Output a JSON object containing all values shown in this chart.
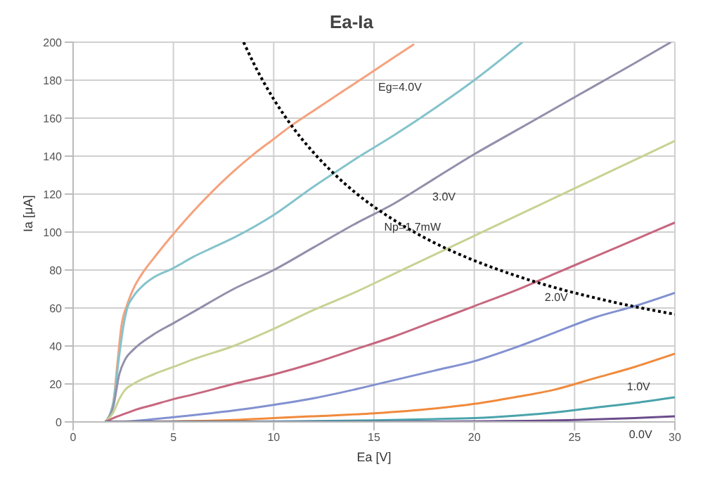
{
  "chart_data": {
    "type": "line",
    "title": "Ea-Ia",
    "xlabel": "Ea [V]",
    "ylabel": "Ia [μA]",
    "xlim": [
      0,
      30
    ],
    "xticks": [
      0,
      5,
      10,
      15,
      20,
      25,
      30
    ],
    "ylim": [
      0,
      200
    ],
    "yticks": [
      0,
      20,
      40,
      60,
      80,
      100,
      120,
      140,
      160,
      180,
      200
    ],
    "grid": true,
    "marker": "none",
    "annotations": [
      {
        "text": "Eg=4.0V",
        "x": 15,
        "y": 185
      },
      {
        "text": "3.0V",
        "x": 17.7,
        "y": 127
      },
      {
        "text": "Np=1.7mW",
        "x": 15.3,
        "y": 111
      },
      {
        "text": "2.0V",
        "x": 23.3,
        "y": 74
      },
      {
        "text": "1.0V",
        "x": 27.4,
        "y": 27
      },
      {
        "text": "0.0V",
        "x": 27.5,
        "y": 2
      }
    ],
    "series": [
      {
        "color": "#f5a27c",
        "x": [
          1.6,
          2,
          2.2,
          2.4,
          2.7,
          3,
          3.5,
          4,
          5,
          6,
          7,
          8,
          9,
          10,
          11,
          12,
          13,
          14,
          15,
          16,
          17
        ],
        "values": [
          0,
          10,
          30,
          50,
          62,
          70,
          79,
          86,
          99,
          111,
          122,
          132,
          141,
          149,
          157,
          164,
          171,
          178,
          185,
          192,
          199
        ]
      },
      {
        "color": "#84c3cc",
        "x": [
          1.6,
          2,
          2.3,
          2.5,
          2.7,
          3,
          3.5,
          4,
          5,
          6,
          7,
          8,
          10,
          12,
          13,
          14,
          16,
          18,
          20,
          22.4
        ],
        "values": [
          0,
          10,
          35,
          50,
          60,
          66,
          72,
          76,
          81,
          87,
          92,
          97,
          109,
          124,
          131,
          138,
          151,
          165,
          180,
          200
        ]
      },
      {
        "color": "#938fab",
        "x": [
          1.6,
          2,
          2.3,
          2.6,
          3,
          4,
          5,
          6,
          8,
          10,
          12,
          14,
          16,
          18,
          20,
          22,
          24,
          26,
          28,
          29.8
        ],
        "values": [
          0,
          8,
          25,
          33,
          38,
          46,
          52,
          58,
          70,
          80,
          92,
          104,
          115,
          128,
          141,
          153,
          165,
          177,
          189,
          200
        ]
      },
      {
        "color": "#c8d293",
        "x": [
          1.6,
          2,
          2.3,
          2.6,
          3,
          4,
          5,
          6,
          8,
          10,
          12,
          14,
          16,
          18,
          20,
          22,
          24,
          26,
          28,
          30
        ],
        "values": [
          0,
          5,
          12,
          17,
          20,
          25,
          29,
          33,
          40,
          49,
          59,
          68,
          78,
          88,
          98,
          108,
          118,
          128,
          138,
          148
        ]
      },
      {
        "color": "#c7677f",
        "x": [
          1.6,
          2,
          2.5,
          3,
          4,
          5,
          6,
          8,
          10,
          12,
          14,
          16,
          18,
          20,
          22,
          24,
          26,
          28,
          30
        ],
        "values": [
          0,
          2,
          4,
          6,
          9,
          12,
          14.5,
          20,
          25,
          31,
          38,
          45,
          53,
          61,
          69,
          78,
          87,
          96,
          105
        ]
      },
      {
        "color": "#8291d0",
        "x": [
          1.6,
          3,
          5,
          8,
          10,
          12,
          14,
          16,
          18,
          20,
          22,
          24,
          26,
          28,
          30
        ],
        "values": [
          0,
          0.5,
          2.5,
          6,
          9,
          12.5,
          17,
          22,
          27,
          32,
          39,
          47,
          55,
          61,
          68
        ]
      },
      {
        "color": "#f08a3c",
        "x": [
          1.6,
          5,
          8,
          10,
          12,
          15,
          18,
          20,
          22,
          24,
          26,
          28,
          30
        ],
        "values": [
          0,
          0.3,
          1,
          2,
          3,
          4.5,
          7,
          9.5,
          13,
          17,
          23,
          29,
          36
        ]
      },
      {
        "color": "#4aa3ab",
        "x": [
          1.6,
          10,
          15,
          18,
          20,
          22,
          24,
          26,
          28,
          30
        ],
        "values": [
          0,
          0.2,
          0.8,
          1.5,
          2,
          3.2,
          5,
          7.5,
          10,
          13
        ]
      },
      {
        "color": "#6b4d8c",
        "x": [
          1.6,
          15,
          20,
          25,
          28,
          30
        ],
        "values": [
          0,
          0,
          0.3,
          1,
          2,
          3
        ]
      },
      {
        "color": "#000000",
        "line_style": "dotted",
        "x": [
          8.5,
          9,
          10,
          11,
          12,
          13,
          14,
          15,
          16,
          18,
          20,
          22,
          24,
          26,
          28,
          30
        ],
        "values": [
          200,
          188.9,
          170,
          154.5,
          141.7,
          130.8,
          121.4,
          113.3,
          106.3,
          94.4,
          85,
          77.3,
          70.8,
          65.4,
          60.7,
          56.7
        ]
      }
    ]
  }
}
